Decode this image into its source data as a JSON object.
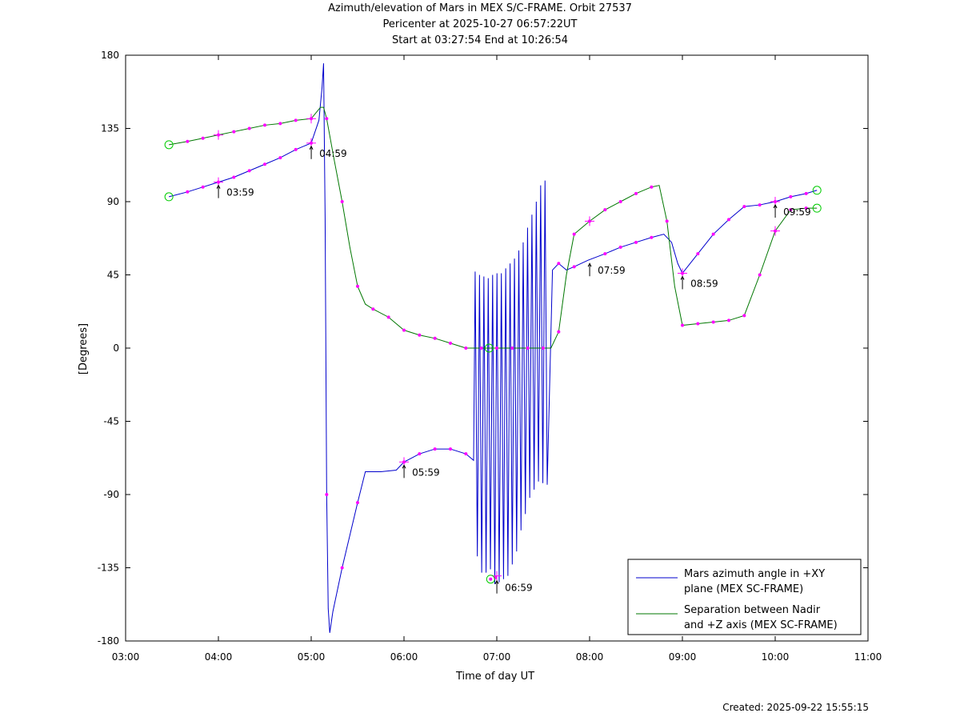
{
  "chart_data": {
    "type": "line",
    "title": "Azimuth/elevation of Mars in MEX S/C-FRAME.  Orbit 27537",
    "subtitle_lines": [
      "Pericenter at 2025-10-27 06:57:22UT",
      "Start at 03:27:54 End at 10:26:54"
    ],
    "xlabel": "Time of day UT",
    "ylabel": "[Degrees]",
    "xlim": [
      "03:00",
      "11:00"
    ],
    "ylim": [
      -180,
      180
    ],
    "xticks": [
      "03:00",
      "04:00",
      "05:00",
      "06:00",
      "07:00",
      "08:00",
      "09:00",
      "10:00",
      "11:00"
    ],
    "yticks": [
      180,
      135,
      90,
      45,
      0,
      -45,
      -90,
      -135,
      -180
    ],
    "grid": false,
    "legend_position": "bottom-right",
    "series": [
      {
        "name": "Mars azimuth angle in +XY plane (MEX SC-FRAME)",
        "legend_lines": [
          "Mars azimuth angle in +XY",
          "plane (MEX SC-FRAME)"
        ],
        "color": "#0000cc",
        "points": [
          [
            "03:28",
            93
          ],
          [
            "03:40",
            96
          ],
          [
            "03:50",
            99
          ],
          [
            "04:00",
            102
          ],
          [
            "04:10",
            105
          ],
          [
            "04:20",
            109
          ],
          [
            "04:30",
            113
          ],
          [
            "04:40",
            117
          ],
          [
            "04:50",
            122
          ],
          [
            "05:00",
            126
          ],
          [
            "05:05",
            140
          ],
          [
            "05:07",
            160
          ],
          [
            "05:08",
            175
          ],
          [
            "05:09",
            80
          ],
          [
            "05:10",
            -90
          ],
          [
            "05:11",
            -160
          ],
          [
            "05:12",
            -175
          ],
          [
            "05:14",
            -162
          ],
          [
            "05:20",
            -135
          ],
          [
            "05:25",
            -115
          ],
          [
            "05:30",
            -95
          ],
          [
            "05:35",
            -76
          ],
          [
            "05:45",
            -76
          ],
          [
            "05:55",
            -75
          ],
          [
            "06:00",
            -70
          ],
          [
            "06:10",
            -65
          ],
          [
            "06:20",
            -62
          ],
          [
            "06:30",
            -62
          ],
          [
            "06:40",
            -65
          ],
          [
            "06:45",
            -69
          ]
        ],
        "oscillation": {
          "start": "06:46",
          "end": "07:34",
          "high": [
            47,
            45,
            44,
            43,
            45,
            46,
            46,
            49,
            52,
            55,
            60,
            65,
            74,
            82,
            90,
            100,
            103
          ],
          "low": [
            -128,
            -138,
            -138,
            -136,
            -145,
            -144,
            -142,
            -140,
            -133,
            -125,
            -112,
            -102,
            -92,
            -87,
            -82,
            -83,
            -84
          ]
        },
        "points_after": [
          [
            "07:36",
            48
          ],
          [
            "07:40",
            52
          ],
          [
            "07:45",
            48
          ],
          [
            "07:50",
            50
          ],
          [
            "07:59",
            54
          ],
          [
            "08:10",
            58
          ],
          [
            "08:20",
            62
          ],
          [
            "08:30",
            65
          ],
          [
            "08:40",
            68
          ],
          [
            "08:48",
            70
          ],
          [
            "08:53",
            65
          ],
          [
            "08:57",
            52
          ],
          [
            "09:00",
            46
          ],
          [
            "09:10",
            58
          ],
          [
            "09:20",
            70
          ],
          [
            "09:30",
            79
          ],
          [
            "09:40",
            87
          ],
          [
            "09:50",
            88
          ],
          [
            "10:00",
            90
          ],
          [
            "10:10",
            93
          ],
          [
            "10:20",
            95
          ],
          [
            "10:27",
            97
          ]
        ],
        "labels": [
          {
            "time": "03:59",
            "text": "03:59"
          },
          {
            "time": "04:59",
            "text": "04:59"
          },
          {
            "time": "05:59",
            "text": "05:59"
          },
          {
            "time": "06:59",
            "text": "06:59"
          },
          {
            "time": "07:59",
            "text": "07:59"
          },
          {
            "time": "08:59",
            "text": "08:59"
          },
          {
            "time": "09:59",
            "text": "09:59"
          }
        ]
      },
      {
        "name": "Separation between Nadir and +Z axis (MEX SC-FRAME)",
        "legend_lines": [
          "Separation between Nadir",
          "and +Z axis (MEX SC-FRAME)"
        ],
        "color": "#007700",
        "points": [
          [
            "03:28",
            125
          ],
          [
            "03:40",
            127
          ],
          [
            "03:50",
            129
          ],
          [
            "04:00",
            131
          ],
          [
            "04:10",
            133
          ],
          [
            "04:20",
            135
          ],
          [
            "04:30",
            137
          ],
          [
            "04:40",
            138
          ],
          [
            "04:50",
            140
          ],
          [
            "05:00",
            141
          ],
          [
            "05:06",
            148
          ],
          [
            "05:08",
            148
          ],
          [
            "05:10",
            141
          ],
          [
            "05:15",
            115
          ],
          [
            "05:20",
            90
          ],
          [
            "05:25",
            62
          ],
          [
            "05:30",
            38
          ],
          [
            "05:35",
            27
          ],
          [
            "05:40",
            24
          ],
          [
            "05:50",
            19
          ],
          [
            "06:00",
            11
          ],
          [
            "06:10",
            8
          ],
          [
            "06:20",
            6
          ],
          [
            "06:30",
            3
          ],
          [
            "06:40",
            0
          ],
          [
            "06:50",
            0
          ],
          [
            "06:55",
            0
          ],
          [
            "07:00",
            0
          ],
          [
            "07:10",
            0
          ],
          [
            "07:20",
            0
          ],
          [
            "07:30",
            0
          ],
          [
            "07:35",
            0
          ],
          [
            "07:40",
            10
          ],
          [
            "07:45",
            45
          ],
          [
            "07:50",
            70
          ],
          [
            "08:00",
            78
          ],
          [
            "08:10",
            85
          ],
          [
            "08:20",
            90
          ],
          [
            "08:30",
            95
          ],
          [
            "08:40",
            99
          ],
          [
            "08:45",
            100
          ],
          [
            "08:50",
            78
          ],
          [
            "08:55",
            38
          ],
          [
            "09:00",
            14
          ],
          [
            "09:10",
            15
          ],
          [
            "09:20",
            16
          ],
          [
            "09:30",
            17
          ],
          [
            "09:40",
            20
          ],
          [
            "09:50",
            45
          ],
          [
            "10:00",
            72
          ],
          [
            "10:10",
            85
          ],
          [
            "10:20",
            86
          ],
          [
            "10:27",
            86
          ]
        ]
      }
    ],
    "dip_points": [
      [
        "06:56",
        -142
      ],
      [
        "06:59",
        -141
      ]
    ]
  },
  "created": "Created: 2025-09-22 15:55:15"
}
